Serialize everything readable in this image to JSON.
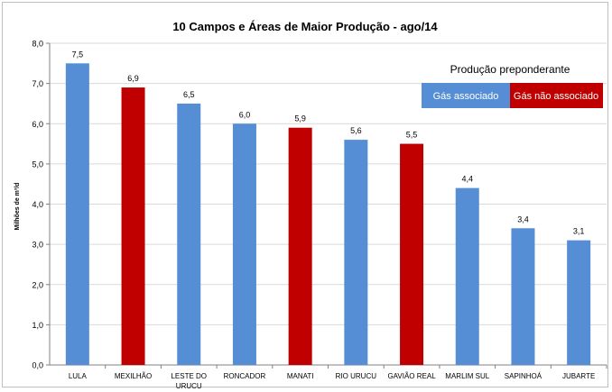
{
  "chart_data": {
    "type": "bar",
    "title": "10 Campos  e Áreas de Maior  Produção  - ago/14",
    "xlabel": "",
    "ylabel": "Milhões de m³/d",
    "ylim": [
      0,
      8
    ],
    "yticks": [
      "0,0",
      "1,0",
      "2,0",
      "3,0",
      "4,0",
      "5,0",
      "6,0",
      "7,0",
      "8,0"
    ],
    "grid": true,
    "categories": [
      "LULA",
      "MEXILHÃO",
      "LESTE DO URUCU",
      "RONCADOR",
      "MANATI",
      "RIO URUCU",
      "GAVIÃO REAL",
      "MARLIM SUL",
      "SAPINHOÁ",
      "JUBARTE"
    ],
    "values": [
      7.5,
      6.9,
      6.5,
      6.0,
      5.9,
      5.6,
      5.5,
      4.4,
      3.4,
      3.1
    ],
    "value_labels": [
      "7,5",
      "6,9",
      "6,5",
      "6,0",
      "5,9",
      "5,6",
      "5,5",
      "4,4",
      "3,4",
      "3,1"
    ],
    "bar_types": [
      "assoc",
      "nao",
      "assoc",
      "assoc",
      "nao",
      "assoc",
      "nao",
      "assoc",
      "assoc",
      "assoc"
    ],
    "legend": {
      "title": "Produção preponderante",
      "placement": "top-right",
      "items": [
        {
          "key": "assoc",
          "label": "Gás associado",
          "color": "#558ed5"
        },
        {
          "key": "nao",
          "label": "Gás não associado",
          "color": "#c00000"
        }
      ]
    },
    "colors": {
      "assoc": "#558ed5",
      "nao": "#c00000",
      "grid": "#d9d9d9",
      "axis": "#808080"
    }
  }
}
